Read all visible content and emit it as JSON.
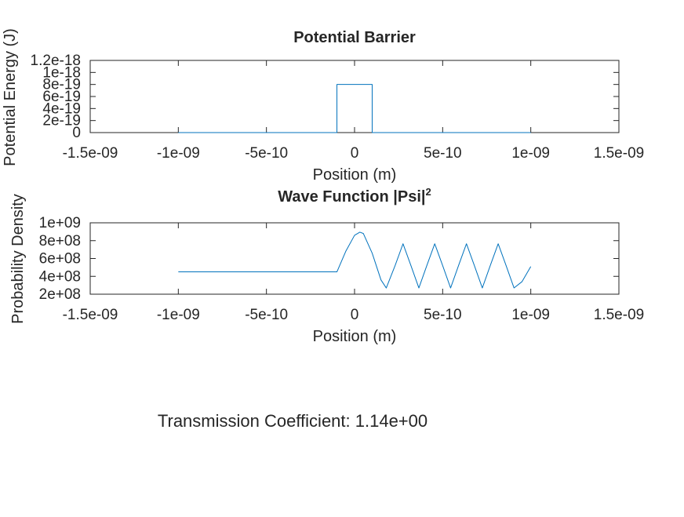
{
  "colors": {
    "line": "#0072BD",
    "axis": "#262626",
    "background": "#ffffff"
  },
  "chart_data": [
    {
      "type": "line",
      "title": "Potential Barrier",
      "xlabel": "Position (m)",
      "ylabel": "Potential Energy (J)",
      "xlim": [
        -1.5e-09,
        1.5e-09
      ],
      "ylim": [
        0,
        1.2e-18
      ],
      "x_ticks": [
        -1.5e-09,
        -1e-09,
        -5e-10,
        0,
        5e-10,
        1e-09,
        1.5e-09
      ],
      "x_tick_labels": [
        "-1.5e-09",
        "-1e-09",
        "-5e-10",
        "0",
        "5e-10",
        "1e-09",
        "1.5e-09"
      ],
      "y_ticks": [
        0,
        2e-19,
        4e-19,
        6e-19,
        8e-19,
        1e-18,
        1.2e-18
      ],
      "y_tick_labels": [
        "0",
        "2e-19",
        "4e-19",
        "6e-19",
        "8e-19",
        "1e-18",
        "1.2e-18"
      ],
      "grid": false,
      "series": [
        {
          "x": [
            -1e-09,
            -1e-10,
            -1e-10,
            1e-10,
            1e-10,
            1e-09
          ],
          "y": [
            0,
            0,
            8e-19,
            8e-19,
            0,
            0
          ]
        }
      ]
    },
    {
      "type": "line",
      "title_main": "Wave Function |Psi|",
      "title_sup": "2",
      "xlabel": "Position (m)",
      "ylabel": "Probability Density",
      "xlim": [
        -1.5e-09,
        1.5e-09
      ],
      "ylim": [
        200000000.0,
        1000000000.0
      ],
      "x_ticks": [
        -1.5e-09,
        -1e-09,
        -5e-10,
        0,
        5e-10,
        1e-09,
        1.5e-09
      ],
      "x_tick_labels": [
        "-1.5e-09",
        "-1e-09",
        "-5e-10",
        "0",
        "5e-10",
        "1e-09",
        "1.5e-09"
      ],
      "y_ticks": [
        200000000.0,
        400000000.0,
        600000000.0,
        800000000.0,
        1000000000.0
      ],
      "y_tick_labels": [
        "2e+08",
        "4e+08",
        "6e+08",
        "8e+08",
        "1e+09"
      ],
      "grid": false,
      "series": [
        {
          "x": [
            -1e-09,
            -1e-10,
            -5e-11,
            0,
            3e-11,
            5e-11,
            1e-10,
            1.5e-10,
            1.8e-10,
            2.3e-10,
            2.75e-10,
            3.2e-10,
            3.65e-10,
            4.1e-10,
            4.55e-10,
            5e-10,
            5.45e-10,
            5.9e-10,
            6.35e-10,
            6.8e-10,
            7.25e-10,
            7.7e-10,
            8.15e-10,
            8.6e-10,
            9.05e-10,
            9.5e-10,
            1e-09
          ],
          "y": [
            450000000.0,
            450000000.0,
            680000000.0,
            860000000.0,
            895000000.0,
            880000000.0,
            660000000.0,
            360000000.0,
            270000000.0,
            520000000.0,
            765000000.0,
            520000000.0,
            270000000.0,
            520000000.0,
            765000000.0,
            520000000.0,
            270000000.0,
            520000000.0,
            765000000.0,
            520000000.0,
            270000000.0,
            520000000.0,
            765000000.0,
            520000000.0,
            270000000.0,
            340000000.0,
            510000000.0
          ]
        }
      ]
    }
  ],
  "annotation": {
    "text": "Transmission Coefficient: 1.14e+00"
  }
}
